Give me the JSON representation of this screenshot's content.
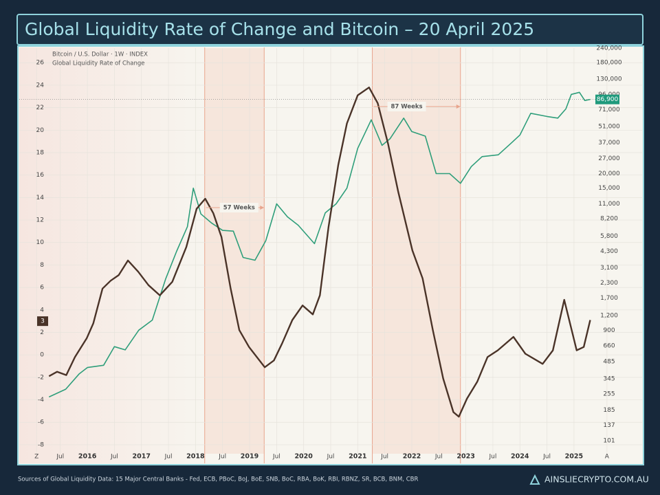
{
  "header": {
    "title": "Global Liquidity Rate of Change and Bitcoin – 20 April 2025"
  },
  "chart_data": {
    "type": "line",
    "xlim": [
      2014.74,
      2026.26
    ],
    "xticks": [
      {
        "value": 2015.06,
        "label": "Z"
      },
      {
        "value": 2015.5,
        "label": "Jul"
      },
      2016,
      {
        "value": 2016.5,
        "label": "Jul"
      },
      2017,
      {
        "value": 2017.5,
        "label": "Jul"
      },
      2018,
      {
        "value": 2018.5,
        "label": "Jul"
      },
      2019,
      {
        "value": 2019.5,
        "label": "Jul"
      },
      2020,
      {
        "value": 2020.5,
        "label": "Jul"
      },
      2021,
      {
        "value": 2021.5,
        "label": "Jul"
      },
      2022,
      {
        "value": 2022.5,
        "label": "Jul"
      },
      2023,
      {
        "value": 2023.5,
        "label": "Jul"
      },
      2024,
      {
        "value": 2024.5,
        "label": "Jul"
      },
      2025,
      {
        "value": 2025.61,
        "label": "A"
      }
    ],
    "ylim": [
      -8.8,
      27.3
    ],
    "yticks": [
      -8,
      -6,
      -4,
      -2,
      0,
      2,
      4,
      6,
      8,
      10,
      12,
      14,
      16,
      18,
      20,
      22,
      24,
      26
    ],
    "y2lim": [
      78,
      240000
    ],
    "y2log": true,
    "y2ticks": [
      101,
      137,
      185,
      255,
      345,
      485,
      660,
      900,
      {
        "value": 1200,
        "label": "1,200"
      },
      {
        "value": 1700,
        "label": "1,700"
      },
      {
        "value": 2300,
        "label": "2,300"
      },
      {
        "value": 3100,
        "label": "3,100"
      },
      {
        "value": 4300,
        "label": "4,300"
      },
      {
        "value": 5800,
        "label": "5,800"
      },
      {
        "value": 8200,
        "label": "8,200"
      },
      {
        "value": 11000,
        "label": "11,000"
      },
      {
        "value": 15000,
        "label": "15,000"
      },
      {
        "value": 20000,
        "label": "20,000"
      },
      {
        "value": 27000,
        "label": "27,000"
      },
      {
        "value": 37000,
        "label": "37,000"
      },
      {
        "value": 51000,
        "label": "51,000"
      },
      {
        "value": 71000,
        "label": "71,000"
      },
      {
        "value": 96000,
        "label": "96,000"
      },
      {
        "value": 130000,
        "label": "130,000"
      },
      {
        "value": 180000,
        "label": "180,000"
      },
      {
        "value": 240000,
        "label": "240,000"
      }
    ],
    "grid": true,
    "highlights": [
      {
        "start": 2018.17,
        "end": 2019.27,
        "label": "57 Weeks"
      },
      {
        "start": 2021.27,
        "end": 2022.9,
        "label": "87 Weeks"
      }
    ],
    "series": [
      {
        "name": "Bitcoin / U.S. Dollar · 1W · INDEX",
        "color": "#2e9e7a",
        "axis": "y2",
        "x": [
          2015.29,
          2015.6,
          2015.85,
          2016.0,
          2016.3,
          2016.5,
          2016.7,
          2016.95,
          2017.2,
          2017.45,
          2017.65,
          2017.85,
          2017.96,
          2018.1,
          2018.3,
          2018.5,
          2018.7,
          2018.88,
          2019.1,
          2019.3,
          2019.5,
          2019.7,
          2019.9,
          2020.2,
          2020.4,
          2020.6,
          2020.8,
          2021.0,
          2021.25,
          2021.45,
          2021.6,
          2021.85,
          2022.0,
          2022.25,
          2022.45,
          2022.7,
          2022.9,
          2023.1,
          2023.3,
          2023.6,
          2023.85,
          2024.0,
          2024.2,
          2024.5,
          2024.7,
          2024.85,
          2024.95,
          2025.1,
          2025.2,
          2025.3
        ],
        "values": [
          240,
          280,
          380,
          430,
          450,
          650,
          610,
          900,
          1100,
          2500,
          4300,
          7000,
          15000,
          9000,
          7500,
          6500,
          6400,
          3800,
          3600,
          5300,
          11000,
          8500,
          7200,
          5000,
          9200,
          11000,
          15000,
          33000,
          58000,
          35000,
          40000,
          60000,
          46000,
          42000,
          20000,
          20000,
          16500,
          23000,
          28000,
          29000,
          37000,
          43000,
          66000,
          62000,
          60000,
          72000,
          96000,
          100000,
          85000,
          86900
        ]
      },
      {
        "name": "Global Liquidity Rate of Change",
        "color": "#4a3328",
        "axis": "y",
        "x": [
          2015.29,
          2015.44,
          2015.61,
          2015.77,
          2015.99,
          2016.11,
          2016.28,
          2016.43,
          2016.58,
          2016.75,
          2016.94,
          2017.13,
          2017.34,
          2017.57,
          2017.83,
          2018.02,
          2018.18,
          2018.33,
          2018.48,
          2018.65,
          2018.81,
          2018.99,
          2019.28,
          2019.45,
          2019.6,
          2019.79,
          2019.98,
          2020.17,
          2020.3,
          2020.46,
          2020.64,
          2020.8,
          2021.0,
          2021.21,
          2021.37,
          2021.56,
          2021.75,
          2022.01,
          2022.2,
          2022.39,
          2022.58,
          2022.77,
          2022.87,
          2023.02,
          2023.21,
          2023.4,
          2023.59,
          2023.88,
          2024.1,
          2024.42,
          2024.61,
          2024.82,
          2025.05,
          2025.18,
          2025.3
        ],
        "values": [
          -1.9,
          -1.5,
          -1.8,
          -0.2,
          1.5,
          2.8,
          5.9,
          6.6,
          7.1,
          8.4,
          7.4,
          6.2,
          5.3,
          6.5,
          9.6,
          13.0,
          13.9,
          12.6,
          10.5,
          5.9,
          2.2,
          0.7,
          -1.1,
          -0.5,
          1.0,
          3.1,
          4.4,
          3.6,
          5.3,
          11.4,
          16.9,
          20.6,
          23.1,
          23.8,
          22.4,
          18.8,
          14.5,
          9.3,
          6.8,
          2.2,
          -2.1,
          -5.1,
          -5.5,
          -3.9,
          -2.4,
          -0.2,
          0.4,
          1.6,
          0.1,
          -0.8,
          0.4,
          4.9,
          0.4,
          0.7,
          3.1
        ]
      }
    ],
    "price_marker": {
      "value": 86900,
      "label": "86,900"
    },
    "liquidity_marker": 3
  },
  "footer": {
    "source": "Sources of Global Liquidity Data: 15 Major Central Banks - Fed, ECB, PBoC, BoJ, BoE, SNB, BoC, RBA, BoK, RBI, RBNZ, SR, BCB, BNM, CBR",
    "brand": "AINSLIECRYPTO.COM.AU"
  }
}
